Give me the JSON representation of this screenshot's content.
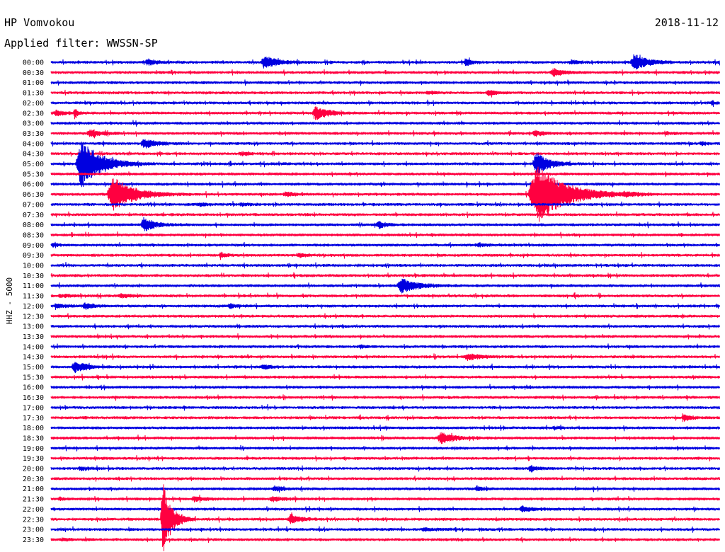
{
  "header": {
    "station": "HP Vomvokou",
    "date": "2018-11-12",
    "filter_label": "Applied filter: WWSSN-SP"
  },
  "axis": {
    "ylabel": "HHZ - 5000"
  },
  "colors": {
    "even_trace": "#0000e0",
    "odd_trace": "#ff0040"
  },
  "chart_data": {
    "type": "line",
    "title": "HP Vomvokou",
    "subtitle": "Applied filter: WWSSN-SP",
    "date": "2018-11-12",
    "ylabel": "HHZ - 5000",
    "xlabel": "",
    "grid": false,
    "row_labels": [
      "00:00",
      "00:30",
      "01:00",
      "01:30",
      "02:00",
      "02:30",
      "03:00",
      "03:30",
      "04:00",
      "04:30",
      "05:00",
      "05:30",
      "06:00",
      "06:30",
      "07:00",
      "07:30",
      "08:00",
      "08:30",
      "09:00",
      "09:30",
      "10:00",
      "10:30",
      "11:00",
      "11:30",
      "12:00",
      "12:30",
      "13:00",
      "13:30",
      "14:00",
      "14:30",
      "15:00",
      "15:30",
      "16:00",
      "16:30",
      "17:00",
      "17:30",
      "18:00",
      "18:30",
      "19:00",
      "19:30",
      "20:00",
      "20:30",
      "21:00",
      "21:30",
      "22:00",
      "22:30",
      "23:00",
      "23:30"
    ],
    "row_duration_minutes": 30,
    "x_range_minutes": [
      0,
      30
    ],
    "events": [
      {
        "row": "00:00",
        "minute": 4.2,
        "amplitude": 0.45,
        "duration": 1.2
      },
      {
        "row": "00:00",
        "minute": 9.4,
        "amplitude": 1.0,
        "duration": 1.5
      },
      {
        "row": "00:00",
        "minute": 18.5,
        "amplitude": 0.5,
        "duration": 0.9
      },
      {
        "row": "00:00",
        "minute": 23.2,
        "amplitude": 0.25,
        "duration": 1.3
      },
      {
        "row": "00:00",
        "minute": 26.0,
        "amplitude": 1.2,
        "duration": 1.6
      },
      {
        "row": "00:30",
        "minute": 22.4,
        "amplitude": 0.5,
        "duration": 1.3
      },
      {
        "row": "01:30",
        "minute": 16.8,
        "amplitude": 0.2,
        "duration": 1.0
      },
      {
        "row": "01:30",
        "minute": 19.5,
        "amplitude": 0.35,
        "duration": 1.0
      },
      {
        "row": "02:00",
        "minute": 29.6,
        "amplitude": 0.3,
        "duration": 0.4
      },
      {
        "row": "02:30",
        "minute": 0.1,
        "amplitude": 0.4,
        "duration": 1.0
      },
      {
        "row": "02:30",
        "minute": 1.0,
        "amplitude": 0.8,
        "duration": 0.4
      },
      {
        "row": "02:30",
        "minute": 11.7,
        "amplitude": 1.0,
        "duration": 1.5
      },
      {
        "row": "03:30",
        "minute": 1.6,
        "amplitude": 0.55,
        "duration": 1.3
      },
      {
        "row": "03:30",
        "minute": 21.6,
        "amplitude": 0.45,
        "duration": 0.9
      },
      {
        "row": "03:30",
        "minute": 27.5,
        "amplitude": 0.2,
        "duration": 0.8
      },
      {
        "row": "04:00",
        "minute": 4.0,
        "amplitude": 0.7,
        "duration": 1.5
      },
      {
        "row": "04:00",
        "minute": 29.1,
        "amplitude": 0.3,
        "duration": 0.7
      },
      {
        "row": "04:30",
        "minute": 8.4,
        "amplitude": 0.25,
        "duration": 1.0
      },
      {
        "row": "05:00",
        "minute": 1.1,
        "amplitude": 4.0,
        "duration": 2.2
      },
      {
        "row": "05:00",
        "minute": 21.6,
        "amplitude": 1.8,
        "duration": 1.5
      },
      {
        "row": "06:30",
        "minute": 2.5,
        "amplitude": 2.8,
        "duration": 2.4
      },
      {
        "row": "06:30",
        "minute": 21.4,
        "amplitude": 4.5,
        "duration": 3.5
      },
      {
        "row": "06:30",
        "minute": 10.4,
        "amplitude": 0.35,
        "duration": 1.0
      },
      {
        "row": "06:30",
        "minute": 25.6,
        "amplitude": 0.25,
        "duration": 1.2
      },
      {
        "row": "07:00",
        "minute": 6.5,
        "amplitude": 0.2,
        "duration": 1.0
      },
      {
        "row": "07:00",
        "minute": 8.4,
        "amplitude": 0.2,
        "duration": 1.2
      },
      {
        "row": "08:00",
        "minute": 4.0,
        "amplitude": 1.0,
        "duration": 1.4
      },
      {
        "row": "08:00",
        "minute": 14.6,
        "amplitude": 0.55,
        "duration": 0.9
      },
      {
        "row": "09:00",
        "minute": 0.0,
        "amplitude": 0.3,
        "duration": 0.6
      },
      {
        "row": "09:00",
        "minute": 19.0,
        "amplitude": 0.2,
        "duration": 1.2
      },
      {
        "row": "09:30",
        "minute": 7.5,
        "amplitude": 0.25,
        "duration": 1.0
      },
      {
        "row": "09:30",
        "minute": 11.0,
        "amplitude": 0.25,
        "duration": 1.0
      },
      {
        "row": "11:00",
        "minute": 15.5,
        "amplitude": 1.1,
        "duration": 1.9
      },
      {
        "row": "11:30",
        "minute": 0.3,
        "amplitude": 0.2,
        "duration": 1.5
      },
      {
        "row": "11:30",
        "minute": 3.0,
        "amplitude": 0.25,
        "duration": 1.2
      },
      {
        "row": "12:00",
        "minute": 0.1,
        "amplitude": 0.25,
        "duration": 1.4
      },
      {
        "row": "12:00",
        "minute": 1.4,
        "amplitude": 0.5,
        "duration": 1.0
      },
      {
        "row": "12:00",
        "minute": 7.9,
        "amplitude": 0.35,
        "duration": 0.9
      },
      {
        "row": "14:00",
        "minute": 13.8,
        "amplitude": 0.25,
        "duration": 0.6
      },
      {
        "row": "14:30",
        "minute": 18.5,
        "amplitude": 0.45,
        "duration": 1.6
      },
      {
        "row": "15:00",
        "minute": 0.9,
        "amplitude": 0.8,
        "duration": 1.4
      },
      {
        "row": "15:00",
        "minute": 9.4,
        "amplitude": 0.35,
        "duration": 0.9
      },
      {
        "row": "18:00",
        "minute": 22.5,
        "amplitude": 0.2,
        "duration": 0.8
      },
      {
        "row": "17:30",
        "minute": 28.3,
        "amplitude": 0.5,
        "duration": 0.9
      },
      {
        "row": "18:30",
        "minute": 17.3,
        "amplitude": 0.8,
        "duration": 1.6
      },
      {
        "row": "20:00",
        "minute": 21.4,
        "amplitude": 0.5,
        "duration": 0.9
      },
      {
        "row": "20:00",
        "minute": 1.2,
        "amplitude": 0.25,
        "duration": 1.0
      },
      {
        "row": "21:00",
        "minute": 9.9,
        "amplitude": 0.3,
        "duration": 1.2
      },
      {
        "row": "21:00",
        "minute": 19.0,
        "amplitude": 0.35,
        "duration": 0.8
      },
      {
        "row": "21:30",
        "minute": 0.3,
        "amplitude": 0.25,
        "duration": 0.6
      },
      {
        "row": "21:30",
        "minute": 6.3,
        "amplitude": 0.35,
        "duration": 1.2
      },
      {
        "row": "21:30",
        "minute": 9.8,
        "amplitude": 0.35,
        "duration": 1.2
      },
      {
        "row": "22:00",
        "minute": 21.0,
        "amplitude": 0.4,
        "duration": 1.4
      },
      {
        "row": "22:30",
        "minute": 10.6,
        "amplitude": 0.65,
        "duration": 1.3
      },
      {
        "row": "22:30",
        "minute": 4.9,
        "amplitude": 6.0,
        "duration": 1.0
      },
      {
        "row": "23:00",
        "minute": 16.6,
        "amplitude": 0.2,
        "duration": 1.4
      },
      {
        "row": "23:30",
        "minute": 0.4,
        "amplitude": 0.2,
        "duration": 1.0
      }
    ]
  }
}
